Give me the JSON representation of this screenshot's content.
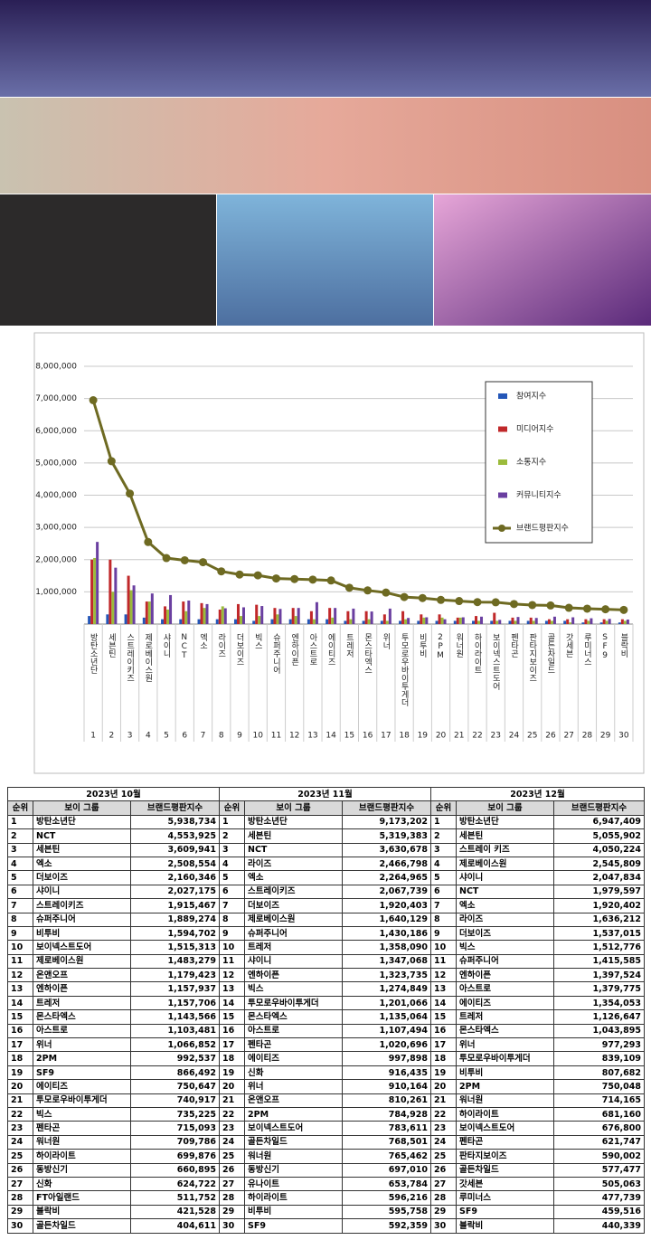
{
  "chart_data": {
    "type": "bar",
    "categories": [
      "방탄소년단",
      "세븐틴",
      "스트레이키즈",
      "제로베이스원",
      "샤이니",
      "NCT",
      "엑소",
      "라이즈",
      "더보이즈",
      "빅스",
      "슈퍼주니어",
      "엔하이픈",
      "아스트로",
      "에이티즈",
      "트레저",
      "몬스타엑스",
      "위너",
      "투모로우바이투게더",
      "비투비",
      "2PM",
      "워너원",
      "하이라이트",
      "보이넥스트도어",
      "펜타곤",
      "판타지보이즈",
      "골든차일드",
      "갓세븐",
      "루미너스",
      "SF9",
      "블락비"
    ],
    "category_numbers": [
      1,
      2,
      3,
      4,
      5,
      6,
      7,
      8,
      9,
      10,
      11,
      12,
      13,
      14,
      15,
      16,
      17,
      18,
      19,
      20,
      21,
      22,
      23,
      24,
      25,
      26,
      27,
      28,
      29,
      30
    ],
    "series": [
      {
        "name": "참여지수",
        "color": "#2457b8",
        "values": [
          250000,
          300000,
          300000,
          200000,
          150000,
          150000,
          150000,
          150000,
          150000,
          100000,
          150000,
          150000,
          150000,
          150000,
          100000,
          100000,
          100000,
          100000,
          100000,
          100000,
          100000,
          100000,
          100000,
          100000,
          100000,
          100000,
          100000,
          50000,
          50000,
          50000
        ]
      },
      {
        "name": "미디어지수",
        "color": "#c0282a",
        "values": [
          2000000,
          2000000,
          1500000,
          700000,
          550000,
          700000,
          650000,
          450000,
          620000,
          600000,
          500000,
          500000,
          400000,
          500000,
          400000,
          400000,
          300000,
          400000,
          300000,
          300000,
          200000,
          250000,
          350000,
          200000,
          200000,
          150000,
          150000,
          150000,
          150000,
          150000
        ]
      },
      {
        "name": "소통지수",
        "color": "#9bbb3b",
        "values": [
          2050000,
          1000000,
          1050000,
          700000,
          450000,
          400000,
          500000,
          550000,
          250000,
          250000,
          300000,
          250000,
          150000,
          200000,
          150000,
          150000,
          100000,
          150000,
          200000,
          200000,
          200000,
          100000,
          100000,
          100000,
          100000,
          100000,
          50000,
          100000,
          100000,
          100000
        ]
      },
      {
        "name": "커뮤니티지수",
        "color": "#6a3fa0",
        "values": [
          2550000,
          1750000,
          1200000,
          950000,
          900000,
          730000,
          620000,
          490000,
          520000,
          560000,
          470000,
          500000,
          680000,
          500000,
          480000,
          390000,
          480000,
          190000,
          210000,
          150000,
          210000,
          230000,
          130000,
          220000,
          190000,
          230000,
          210000,
          180000,
          160000,
          140000
        ]
      },
      {
        "name": "브랜드평판지수",
        "color": "#6e6a22",
        "type": "line",
        "values": [
          6947409,
          5055902,
          4050224,
          2545809,
          2047834,
          1979597,
          1920402,
          1636212,
          1537015,
          1512776,
          1415585,
          1397524,
          1379775,
          1354053,
          1126647,
          1043895,
          977293,
          839109,
          807682,
          750048,
          714165,
          681160,
          676800,
          621747,
          590002,
          577477,
          505063,
          477739,
          459516,
          440339
        ]
      }
    ],
    "ylim": [
      0,
      8000000
    ],
    "yticks": [
      {
        "value": 1000000,
        "label": "1,000,000"
      },
      {
        "value": 2000000,
        "label": "2,000,000"
      },
      {
        "value": 3000000,
        "label": "3,000,000"
      },
      {
        "value": 4000000,
        "label": "4,000,000"
      },
      {
        "value": 5000000,
        "label": "5,000,000"
      },
      {
        "value": 6000000,
        "label": "6,000,000"
      },
      {
        "value": 7000000,
        "label": "7,000,000"
      },
      {
        "value": 8000000,
        "label": "8,000,000"
      }
    ],
    "grid": true,
    "legend": "top-right"
  },
  "table": {
    "months": [
      "2023년 10월",
      "2023년 11월",
      "2023년 12월"
    ],
    "headers": [
      "순위",
      "보이 그룹",
      "브랜드평판지수"
    ],
    "blocks": [
      {
        "rows": [
          [
            1,
            "방탄소년단",
            "5,938,734"
          ],
          [
            2,
            "NCT",
            "4,553,925"
          ],
          [
            3,
            "세븐틴",
            "3,609,941"
          ],
          [
            4,
            "엑소",
            "2,508,554"
          ],
          [
            5,
            "더보이즈",
            "2,160,346"
          ],
          [
            6,
            "샤이니",
            "2,027,175"
          ],
          [
            7,
            "스트레이키즈",
            "1,915,467"
          ],
          [
            8,
            "슈퍼주니어",
            "1,889,274"
          ],
          [
            9,
            "비투비",
            "1,594,702"
          ],
          [
            10,
            "보이넥스트도어",
            "1,515,313"
          ],
          [
            11,
            "제로베이스원",
            "1,483,279"
          ],
          [
            12,
            "온앤오프",
            "1,179,423"
          ],
          [
            13,
            "엔하이픈",
            "1,157,937"
          ],
          [
            14,
            "트레저",
            "1,157,706"
          ],
          [
            15,
            "몬스타엑스",
            "1,143,566"
          ],
          [
            16,
            "아스트로",
            "1,103,481"
          ],
          [
            17,
            "위너",
            "1,066,852"
          ],
          [
            18,
            "2PM",
            "992,537"
          ],
          [
            19,
            "SF9",
            "866,492"
          ],
          [
            20,
            "에이티즈",
            "750,647"
          ],
          [
            21,
            "투모로우바이투게더",
            "740,917"
          ],
          [
            22,
            "빅스",
            "735,225"
          ],
          [
            23,
            "펜타곤",
            "715,093"
          ],
          [
            24,
            "워너원",
            "709,786"
          ],
          [
            25,
            "하이라이트",
            "699,876"
          ],
          [
            26,
            "동방신기",
            "660,895"
          ],
          [
            27,
            "신화",
            "624,722"
          ],
          [
            28,
            "FT아일랜드",
            "511,752"
          ],
          [
            29,
            "블락비",
            "421,528"
          ],
          [
            30,
            "골든차일드",
            "404,611"
          ]
        ]
      },
      {
        "rows": [
          [
            1,
            "방탄소년단",
            "9,173,202"
          ],
          [
            2,
            "세븐틴",
            "5,319,383"
          ],
          [
            3,
            "NCT",
            "3,630,678"
          ],
          [
            4,
            "라이즈",
            "2,466,798"
          ],
          [
            5,
            "엑소",
            "2,264,965"
          ],
          [
            6,
            "스트레이키즈",
            "2,067,739"
          ],
          [
            7,
            "더보이즈",
            "1,920,403"
          ],
          [
            8,
            "제로베이스원",
            "1,640,129"
          ],
          [
            9,
            "슈퍼주니어",
            "1,430,186"
          ],
          [
            10,
            "트레저",
            "1,358,090"
          ],
          [
            11,
            "샤이니",
            "1,347,068"
          ],
          [
            12,
            "엔하이픈",
            "1,323,735"
          ],
          [
            13,
            "빅스",
            "1,274,849"
          ],
          [
            14,
            "투모로우바이투게더",
            "1,201,066"
          ],
          [
            15,
            "몬스타엑스",
            "1,135,064"
          ],
          [
            16,
            "아스트로",
            "1,107,494"
          ],
          [
            17,
            "펜타곤",
            "1,020,696"
          ],
          [
            18,
            "에이티즈",
            "997,898"
          ],
          [
            19,
            "신화",
            "916,435"
          ],
          [
            20,
            "위너",
            "910,164"
          ],
          [
            21,
            "온앤오프",
            "810,261"
          ],
          [
            22,
            "2PM",
            "784,928"
          ],
          [
            23,
            "보이넥스트도어",
            "783,611"
          ],
          [
            24,
            "골든차일드",
            "768,501"
          ],
          [
            25,
            "워너원",
            "765,462"
          ],
          [
            26,
            "동방신기",
            "697,010"
          ],
          [
            27,
            "유나이트",
            "653,784"
          ],
          [
            28,
            "하이라이트",
            "596,216"
          ],
          [
            29,
            "비투비",
            "595,758"
          ],
          [
            30,
            "SF9",
            "592,359"
          ]
        ]
      },
      {
        "rows": [
          [
            1,
            "방탄소년단",
            "6,947,409"
          ],
          [
            2,
            "세븐틴",
            "5,055,902"
          ],
          [
            3,
            "스트레이 키즈",
            "4,050,224"
          ],
          [
            4,
            "제로베이스원",
            "2,545,809"
          ],
          [
            5,
            "샤이니",
            "2,047,834"
          ],
          [
            6,
            "NCT",
            "1,979,597"
          ],
          [
            7,
            "엑소",
            "1,920,402"
          ],
          [
            8,
            "라이즈",
            "1,636,212"
          ],
          [
            9,
            "더보이즈",
            "1,537,015"
          ],
          [
            10,
            "빅스",
            "1,512,776"
          ],
          [
            11,
            "슈퍼주니어",
            "1,415,585"
          ],
          [
            12,
            "엔하이픈",
            "1,397,524"
          ],
          [
            13,
            "아스트로",
            "1,379,775"
          ],
          [
            14,
            "에이티즈",
            "1,354,053"
          ],
          [
            15,
            "트레저",
            "1,126,647"
          ],
          [
            16,
            "몬스타엑스",
            "1,043,895"
          ],
          [
            17,
            "위너",
            "977,293"
          ],
          [
            18,
            "투모로우바이투게더",
            "839,109"
          ],
          [
            19,
            "비투비",
            "807,682"
          ],
          [
            20,
            "2PM",
            "750,048"
          ],
          [
            21,
            "워너원",
            "714,165"
          ],
          [
            22,
            "하이라이트",
            "681,160"
          ],
          [
            23,
            "보이넥스트도어",
            "676,800"
          ],
          [
            24,
            "펜타곤",
            "621,747"
          ],
          [
            25,
            "판타지보이즈",
            "590,002"
          ],
          [
            26,
            "골든차일드",
            "577,477"
          ],
          [
            27,
            "갓세븐",
            "505,063"
          ],
          [
            28,
            "루미너스",
            "477,739"
          ],
          [
            29,
            "SF9",
            "459,516"
          ],
          [
            30,
            "블락비",
            "440,339"
          ]
        ]
      }
    ]
  }
}
